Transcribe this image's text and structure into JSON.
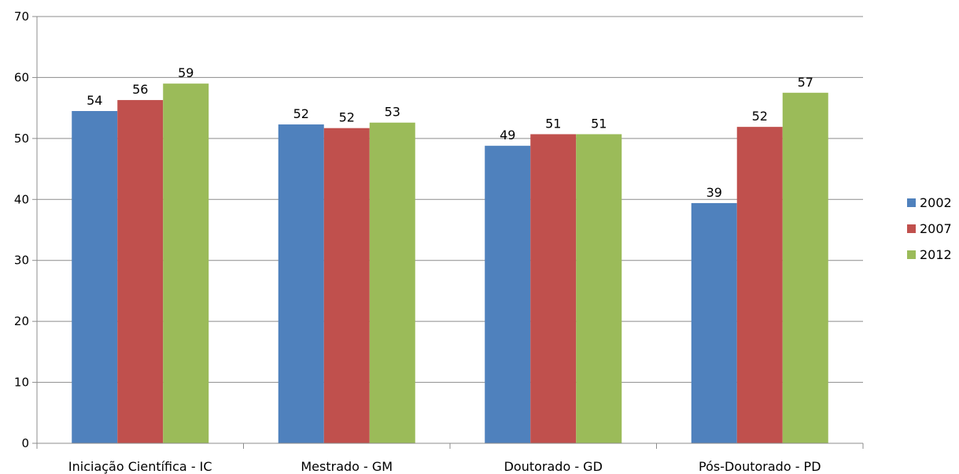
{
  "chart_data": {
    "type": "bar",
    "title": "",
    "xlabel": "",
    "ylabel": "",
    "categories": [
      "Iniciação Científica - IC",
      "Mestrado - GM",
      "Doutorado - GD",
      "Pós-Doutorado - PD"
    ],
    "series": [
      {
        "name": "2002",
        "color": "#4f81bd",
        "values": [
          54.5,
          52.3,
          48.8,
          39.4
        ],
        "labels": [
          "54",
          "52",
          "49",
          "39"
        ]
      },
      {
        "name": "2007",
        "color": "#c0504d",
        "values": [
          56.3,
          51.7,
          50.7,
          51.9
        ],
        "labels": [
          "56",
          "52",
          "51",
          "52"
        ]
      },
      {
        "name": "2012",
        "color": "#9bbb59",
        "values": [
          59.0,
          52.6,
          50.7,
          57.5
        ],
        "labels": [
          "59",
          "53",
          "51",
          "57"
        ]
      }
    ],
    "ylim": [
      0,
      70
    ],
    "yticks": [
      0,
      10,
      20,
      30,
      40,
      50,
      60,
      70
    ],
    "grid": true,
    "legend_position": "right"
  }
}
